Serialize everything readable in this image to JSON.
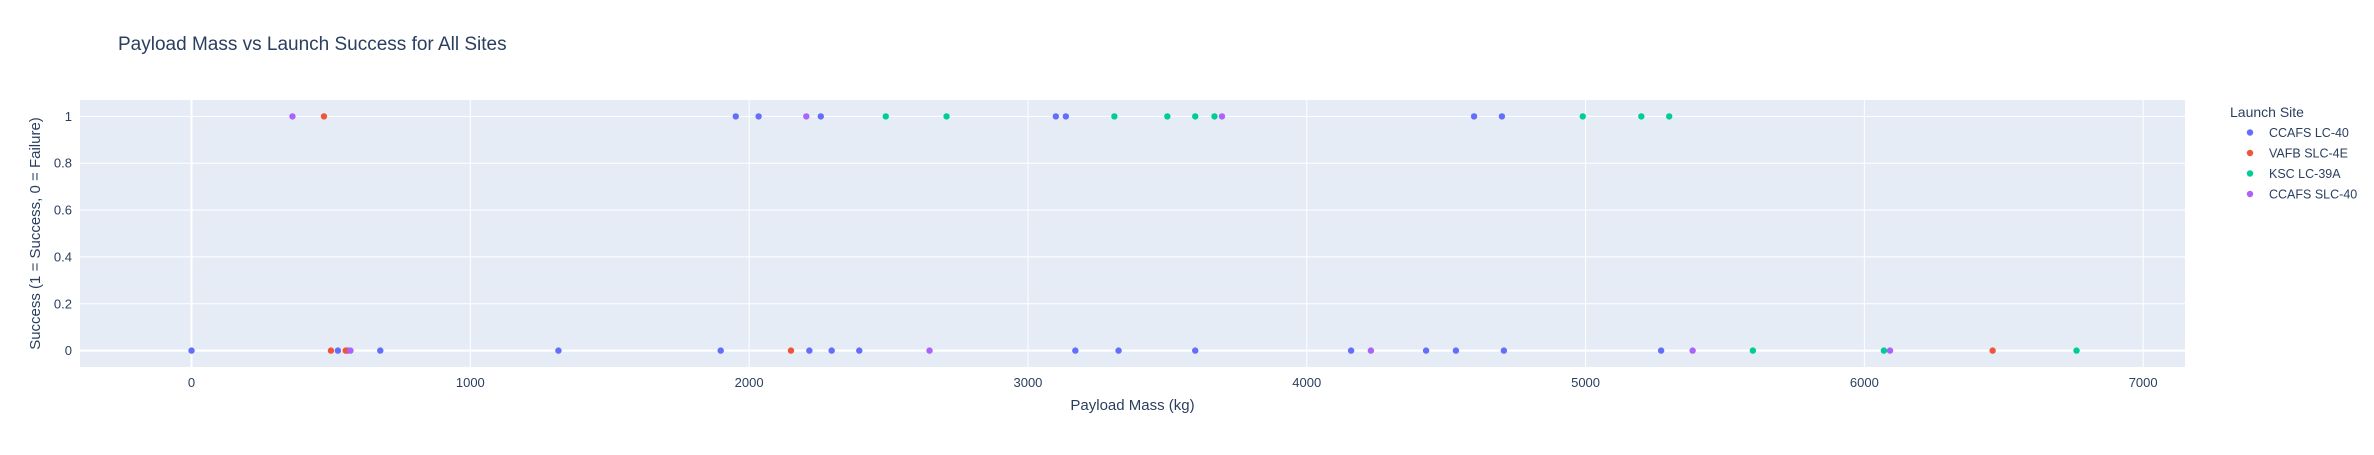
{
  "chart_data": {
    "type": "scatter",
    "title": "Payload Mass vs Launch Success for All Sites",
    "xlabel": "Payload Mass (kg)",
    "ylabel": "Success (1 = Success, 0 = Failure)",
    "xlim": [
      -400,
      7150
    ],
    "ylim": [
      -0.07,
      1.07
    ],
    "x_ticks": [
      0,
      1000,
      2000,
      3000,
      4000,
      5000,
      6000,
      7000
    ],
    "x_tick_labels": [
      "0",
      "1000",
      "2000",
      "3000",
      "4000",
      "5000",
      "6000",
      "7000"
    ],
    "y_ticks": [
      0,
      0.2,
      0.4,
      0.6,
      0.8,
      1
    ],
    "y_tick_labels": [
      "0",
      "0.2",
      "0.4",
      "0.6",
      "0.8",
      "1"
    ],
    "grid": true,
    "legend": {
      "title": "Launch Site",
      "placement": "right"
    },
    "series": [
      {
        "name": "CCAFS LC-40",
        "color": "#636efa",
        "points": [
          {
            "x": 0,
            "y": 0
          },
          {
            "x": 525,
            "y": 0
          },
          {
            "x": 560,
            "y": 0
          },
          {
            "x": 677,
            "y": 0
          },
          {
            "x": 1316,
            "y": 0
          },
          {
            "x": 1898,
            "y": 0
          },
          {
            "x": 2216,
            "y": 0
          },
          {
            "x": 2296,
            "y": 0
          },
          {
            "x": 2395,
            "y": 0
          },
          {
            "x": 3170,
            "y": 0
          },
          {
            "x": 3325,
            "y": 0
          },
          {
            "x": 3600,
            "y": 0
          },
          {
            "x": 4159,
            "y": 0
          },
          {
            "x": 4428,
            "y": 0
          },
          {
            "x": 4535,
            "y": 0
          },
          {
            "x": 4707,
            "y": 0
          },
          {
            "x": 5271,
            "y": 0
          },
          {
            "x": 1952,
            "y": 1
          },
          {
            "x": 2034,
            "y": 1
          },
          {
            "x": 2257,
            "y": 1
          },
          {
            "x": 3100,
            "y": 1
          },
          {
            "x": 3136,
            "y": 1
          },
          {
            "x": 4600,
            "y": 1
          },
          {
            "x": 4700,
            "y": 1
          }
        ]
      },
      {
        "name": "VAFB SLC-4E",
        "color": "#ef553b",
        "points": [
          {
            "x": 475,
            "y": 1
          },
          {
            "x": 500,
            "y": 0
          },
          {
            "x": 553,
            "y": 0
          },
          {
            "x": 2150,
            "y": 0
          },
          {
            "x": 6460,
            "y": 0
          }
        ]
      },
      {
        "name": "KSC LC-39A",
        "color": "#00cc96",
        "points": [
          {
            "x": 2490,
            "y": 1
          },
          {
            "x": 2708,
            "y": 1
          },
          {
            "x": 3310,
            "y": 1
          },
          {
            "x": 3500,
            "y": 1
          },
          {
            "x": 3600,
            "y": 1
          },
          {
            "x": 3669,
            "y": 1
          },
          {
            "x": 4990,
            "y": 1
          },
          {
            "x": 5200,
            "y": 1
          },
          {
            "x": 5300,
            "y": 1
          },
          {
            "x": 5600,
            "y": 0
          },
          {
            "x": 6070,
            "y": 0
          },
          {
            "x": 6761,
            "y": 0
          }
        ]
      },
      {
        "name": "CCAFS SLC-40",
        "color": "#ab63fa",
        "points": [
          {
            "x": 362,
            "y": 1
          },
          {
            "x": 2205,
            "y": 1
          },
          {
            "x": 3696,
            "y": 1
          },
          {
            "x": 570,
            "y": 0
          },
          {
            "x": 2647,
            "y": 0
          },
          {
            "x": 4230,
            "y": 0
          },
          {
            "x": 5384,
            "y": 0
          },
          {
            "x": 6092,
            "y": 0
          }
        ]
      }
    ]
  }
}
